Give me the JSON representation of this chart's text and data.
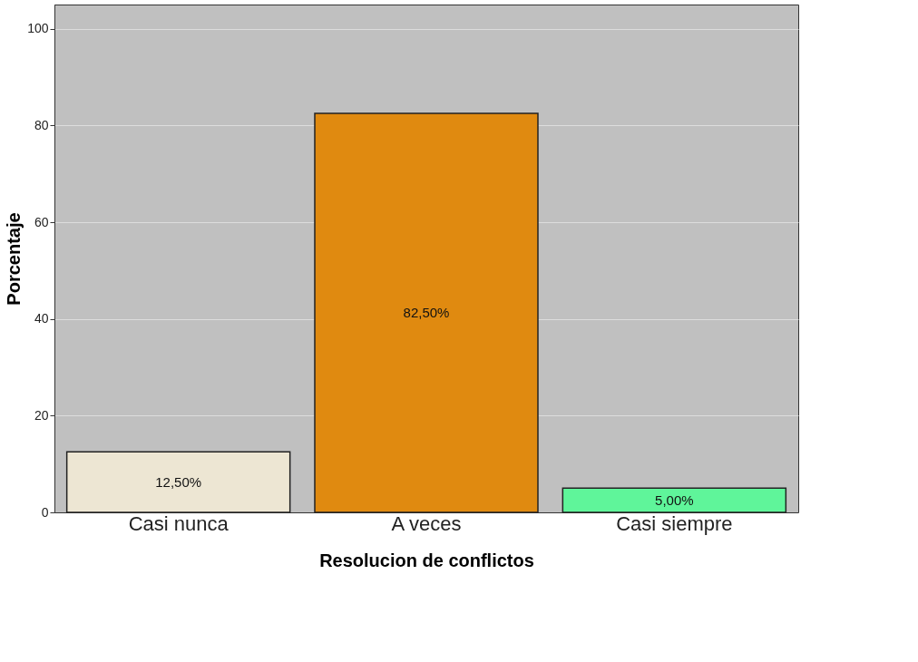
{
  "chart_data": {
    "type": "bar",
    "xlabel": "Resolucion de conflictos",
    "ylabel": "Porcentaje",
    "categories": [
      "Casi nunca",
      "A veces",
      "Casi siempre"
    ],
    "values": [
      12.5,
      82.5,
      5
    ],
    "colors": [
      "#ede6d3",
      "#e08a10",
      "#5ff59a"
    ],
    "value_labels": [
      "12,50%",
      "82,50%",
      "5,00%"
    ],
    "ylim": [
      0,
      105
    ],
    "yticks": [
      0,
      20,
      40,
      60,
      80,
      100
    ],
    "grid": "y"
  }
}
